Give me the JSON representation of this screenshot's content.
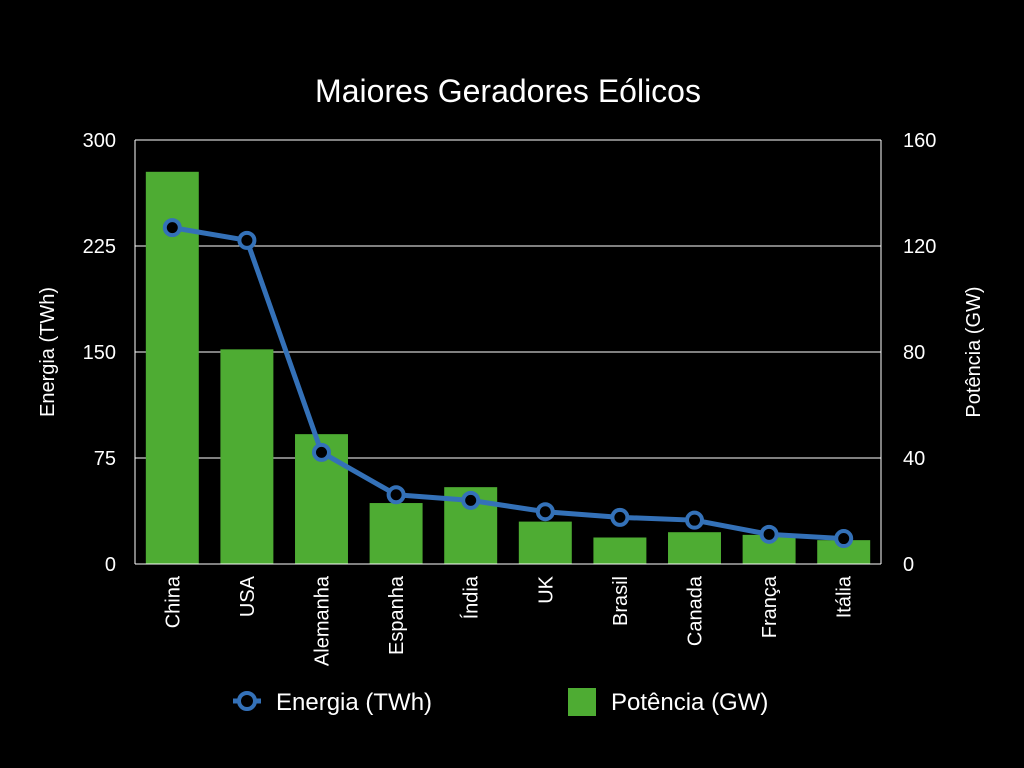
{
  "chart_data": {
    "type": "bar",
    "title": "Maiores Geradores Eólicos",
    "categories": [
      "China",
      "USA",
      "Alemanha",
      "Espanha",
      "Índia",
      "UK",
      "Brasil",
      "Canada",
      "França",
      "Itália"
    ],
    "series": [
      {
        "name": "Potência (GW)",
        "type": "bar",
        "axis": "right",
        "color": "#4eac33",
        "values": [
          148,
          81,
          49,
          23,
          29,
          16,
          10,
          12,
          11,
          9
        ]
      },
      {
        "name": "Energia (TWh)",
        "type": "line",
        "axis": "left",
        "color": "#3471b8",
        "values": [
          238,
          229,
          79,
          49,
          45,
          37,
          33,
          31,
          21,
          18
        ]
      }
    ],
    "ylabel_left": "Energia (TWh)",
    "ylabel_right": "Potência (GW)",
    "ylim_left": [
      0,
      300
    ],
    "ylim_right": [
      0,
      160
    ],
    "yticks_left": [
      "0",
      "75",
      "150",
      "225",
      "300"
    ],
    "yticks_right": [
      "0",
      "40",
      "80",
      "120",
      "160"
    ],
    "grid": true,
    "legend_position": "bottom"
  }
}
